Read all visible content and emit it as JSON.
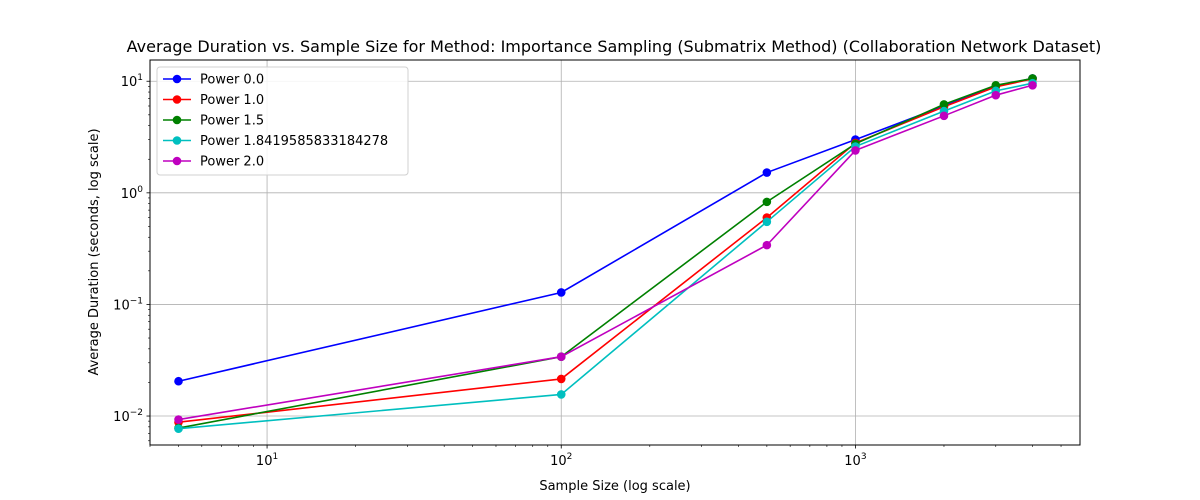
{
  "chart_data": {
    "type": "line",
    "title": "Average Duration vs. Sample Size for Method: Importance Sampling (Submatrix Method) (Collaboration Network Dataset)",
    "xlabel": "Sample Size (log scale)",
    "ylabel": "Average Duration (seconds, log scale)",
    "xscale": "log",
    "yscale": "log",
    "xlim": [
      4,
      5800
    ],
    "ylim": [
      0.0055,
      15.5
    ],
    "xticks": [
      {
        "value": 10,
        "base": "10",
        "exp": "1"
      },
      {
        "value": 100,
        "base": "10",
        "exp": "2"
      },
      {
        "value": 1000,
        "base": "10",
        "exp": "3"
      }
    ],
    "yticks": [
      {
        "value": 0.01,
        "base": "10",
        "exp": "−2"
      },
      {
        "value": 0.1,
        "base": "10",
        "exp": "−1"
      },
      {
        "value": 1,
        "base": "10",
        "exp": "0"
      },
      {
        "value": 10,
        "base": "10",
        "exp": "1"
      }
    ],
    "grid": true,
    "legend_position": "top-left",
    "x": [
      5,
      100,
      500,
      1000,
      2000,
      3000,
      4000
    ],
    "series": [
      {
        "name": "Power 0.0",
        "color": "#0000ff",
        "values": [
          0.0205,
          0.128,
          1.52,
          3.0,
          6.0,
          9.0,
          10.6
        ]
      },
      {
        "name": "Power 1.0",
        "color": "#ff0000",
        "values": [
          0.0088,
          0.0215,
          0.6,
          2.8,
          5.9,
          8.9,
          10.5
        ]
      },
      {
        "name": "Power 1.5",
        "color": "#008000",
        "values": [
          0.0078,
          0.034,
          0.83,
          2.75,
          6.2,
          9.2,
          10.6
        ]
      },
      {
        "name": "Power 1.8419585833184278",
        "color": "#00bfbf",
        "values": [
          0.0077,
          0.0156,
          0.55,
          2.6,
          5.4,
          8.2,
          9.6
        ]
      },
      {
        "name": "Power 2.0",
        "color": "#bf00bf",
        "values": [
          0.0093,
          0.034,
          0.34,
          2.4,
          4.9,
          7.5,
          9.2
        ]
      }
    ]
  }
}
